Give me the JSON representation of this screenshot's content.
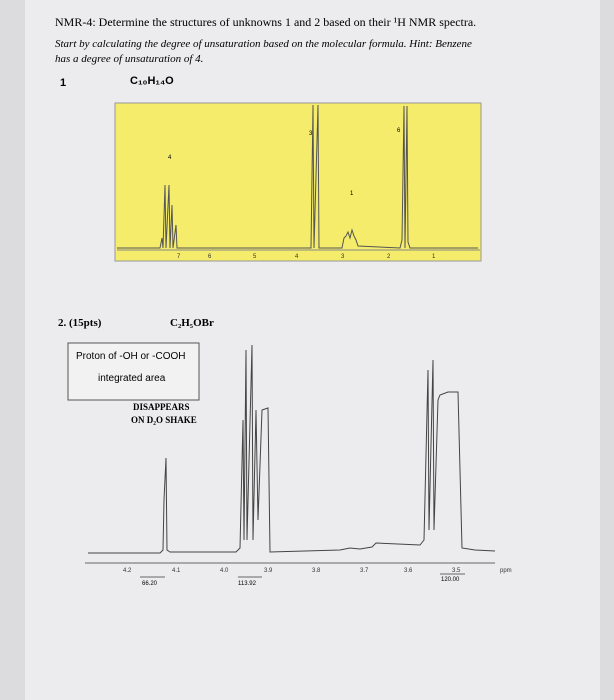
{
  "header": {
    "title": "NMR-4: Determine the structures of unknowns 1 and 2 based on their ¹H NMR spectra.",
    "instructions": [
      "Start by calculating the degree of unsaturation based on the molecular formula. Hint: Benzene",
      "has a degree of unsaturation of 4."
    ]
  },
  "problem1": {
    "number": "1",
    "formula": "C₁₀H₁₄O",
    "integrations": [
      "4",
      "3",
      "6",
      "1"
    ],
    "axis_labels": [
      "7",
      "6",
      "5",
      "4",
      "3",
      "2",
      "1"
    ]
  },
  "problem2": {
    "number": "2. (15pts)",
    "formula": "C₂H₅OBr",
    "note_box": [
      "Proton of -OH or -COOH",
      "integrated area"
    ],
    "note_stamp": [
      "DISAPPEARS",
      "ON D₂O SHAKE"
    ],
    "axis_labels": [
      "4.2",
      "4.1",
      "4.0",
      "3.9",
      "3.8",
      "3.7",
      "3.6",
      "3.5"
    ],
    "axis_unit": "ppm",
    "integrals": [
      "66.20",
      "113.92",
      "120.00"
    ]
  }
}
